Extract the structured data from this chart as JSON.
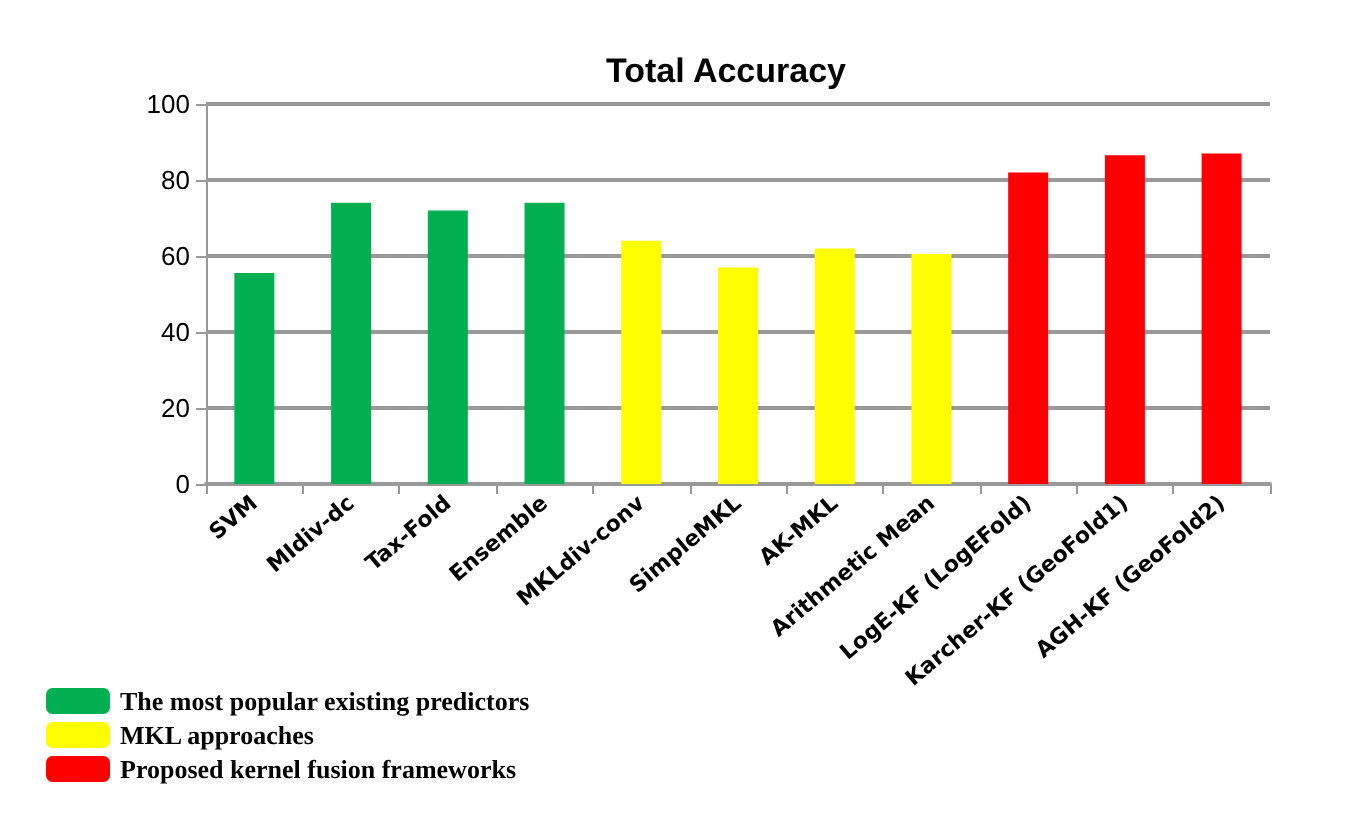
{
  "chart_data": {
    "type": "bar",
    "title": "Total Accuracy",
    "categories": [
      "SVM",
      "MIdiv-dc",
      "Tax-Fold",
      "Ensemble",
      "MKLdiv-conv",
      "SimpleMKL",
      "AK-MKL",
      "Arithmetic Mean",
      "LogE-KF (LogEFold)",
      "Karcher-KF (GeoFold1)",
      "AGH-KF (GeoFold2)"
    ],
    "series": [
      {
        "name": "The most popular existing predictors",
        "color": "#00b050",
        "values": [
          55.5,
          74,
          72,
          74,
          null,
          null,
          null,
          null,
          null,
          null,
          null
        ]
      },
      {
        "name": "MKL approaches",
        "color": "#ffff00",
        "values": [
          null,
          null,
          null,
          null,
          64,
          57,
          62,
          60.5,
          null,
          null,
          null
        ]
      },
      {
        "name": "Proposed kernel fusion frameworks",
        "color": "#ff0000",
        "values": [
          null,
          null,
          null,
          null,
          null,
          null,
          null,
          null,
          82,
          86.5,
          87
        ]
      }
    ],
    "ylim": [
      0,
      100
    ],
    "yticks": [
      0,
      20,
      40,
      60,
      80,
      100
    ],
    "grid": "y",
    "legend": "bottom left"
  }
}
